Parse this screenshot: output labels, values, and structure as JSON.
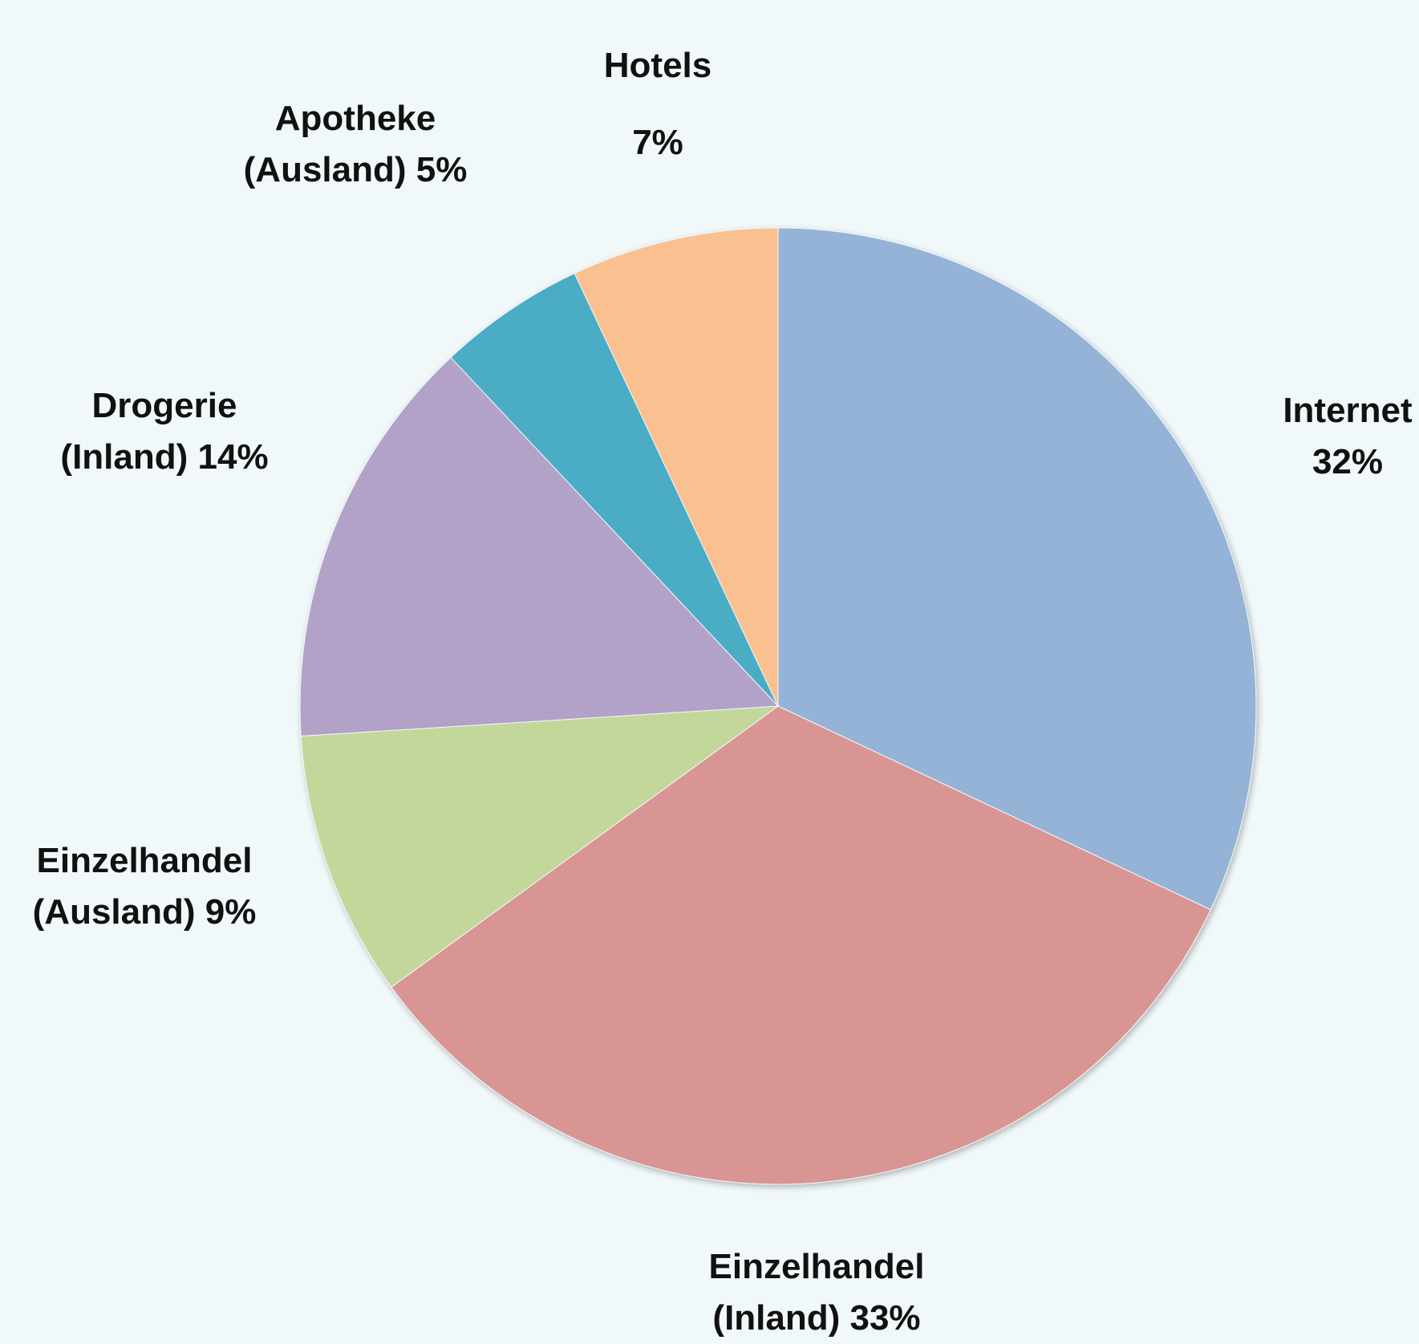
{
  "chart_data": {
    "type": "pie",
    "title": "",
    "start_angle_deg": 0,
    "direction": "clockwise",
    "slices": [
      {
        "name": "Internet",
        "value": 32,
        "color": "#95b3d7",
        "label_lines": [
          "Internet",
          "32%"
        ]
      },
      {
        "name": "Einzelhandel (Inland)",
        "value": 33,
        "color": "#d99594",
        "label_lines": [
          "Einzelhandel",
          "(Inland) 33%"
        ]
      },
      {
        "name": "Einzelhandel (Ausland)",
        "value": 9,
        "color": "#c4d79b",
        "label_lines": [
          "Einzelhandel",
          "(Ausland) 9%"
        ]
      },
      {
        "name": "Drogerie (Inland)",
        "value": 14,
        "color": "#b2a2c7",
        "label_lines": [
          "Drogerie",
          "(Inland) 14%"
        ]
      },
      {
        "name": "Apotheke (Ausland)",
        "value": 5,
        "color": "#4bacc6",
        "label_lines": [
          "Apotheke",
          "(Ausland) 5%"
        ]
      },
      {
        "name": "Hotels",
        "value": 7,
        "color": "#fac090",
        "label_lines": [
          "Hotels",
          "7%"
        ]
      }
    ]
  }
}
